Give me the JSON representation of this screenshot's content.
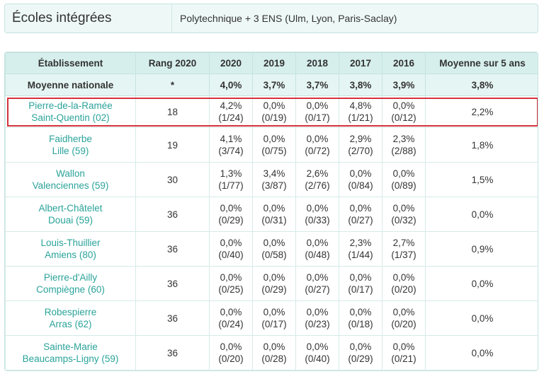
{
  "info": {
    "label": "Écoles intégrées",
    "value": "Polytechnique + 3 ENS (Ulm, Lyon, Paris-Saclay)"
  },
  "table": {
    "headers": [
      "Établissement",
      "Rang 2020",
      "2020",
      "2019",
      "2018",
      "2017",
      "2016",
      "Moyenne sur 5 ans"
    ],
    "national": {
      "name": "Moyenne nationale",
      "rank": "*",
      "years": [
        "4,0%",
        "3,7%",
        "3,7%",
        "3,8%",
        "3,9%"
      ],
      "avg": "3,8%"
    },
    "rows": [
      {
        "name1": "Pierre-de-la-Ramée",
        "name2": "Saint-Quentin (02)",
        "rank": "18",
        "years": [
          [
            "4,2%",
            "(1/24)"
          ],
          [
            "0,0%",
            "(0/19)"
          ],
          [
            "0,0%",
            "(0/17)"
          ],
          [
            "4,8%",
            "(1/21)"
          ],
          [
            "0,0%",
            "(0/12)"
          ]
        ],
        "avg": "2,2%"
      },
      {
        "name1": "Faidherbe",
        "name2": "Lille (59)",
        "rank": "19",
        "years": [
          [
            "4,1%",
            "(3/74)"
          ],
          [
            "0,0%",
            "(0/75)"
          ],
          [
            "0,0%",
            "(0/72)"
          ],
          [
            "2,9%",
            "(2/70)"
          ],
          [
            "2,3%",
            "(2/88)"
          ]
        ],
        "avg": "1,8%"
      },
      {
        "name1": "Wallon",
        "name2": "Valenciennes (59)",
        "rank": "30",
        "years": [
          [
            "1,3%",
            "(1/77)"
          ],
          [
            "3,4%",
            "(3/87)"
          ],
          [
            "2,6%",
            "(2/76)"
          ],
          [
            "0,0%",
            "(0/84)"
          ],
          [
            "0,0%",
            "(0/89)"
          ]
        ],
        "avg": "1,5%"
      },
      {
        "name1": "Albert-Châtelet",
        "name2": "Douai (59)",
        "rank": "36",
        "years": [
          [
            "0,0%",
            "(0/29)"
          ],
          [
            "0,0%",
            "(0/31)"
          ],
          [
            "0,0%",
            "(0/33)"
          ],
          [
            "0,0%",
            "(0/27)"
          ],
          [
            "0,0%",
            "(0/32)"
          ]
        ],
        "avg": "0,0%"
      },
      {
        "name1": "Louis-Thuillier",
        "name2": "Amiens (80)",
        "rank": "36",
        "years": [
          [
            "0,0%",
            "(0/40)"
          ],
          [
            "0,0%",
            "(0/58)"
          ],
          [
            "0,0%",
            "(0/48)"
          ],
          [
            "2,3%",
            "(1/44)"
          ],
          [
            "2,7%",
            "(1/37)"
          ]
        ],
        "avg": "0,9%"
      },
      {
        "name1": "Pierre-d'Ailly",
        "name2": "Compiègne (60)",
        "rank": "36",
        "years": [
          [
            "0,0%",
            "(0/25)"
          ],
          [
            "0,0%",
            "(0/29)"
          ],
          [
            "0,0%",
            "(0/27)"
          ],
          [
            "0,0%",
            "(0/17)"
          ],
          [
            "0,0%",
            "(0/20)"
          ]
        ],
        "avg": "0,0%"
      },
      {
        "name1": "Robespierre",
        "name2": "Arras (62)",
        "rank": "36",
        "years": [
          [
            "0,0%",
            "(0/24)"
          ],
          [
            "0,0%",
            "(0/17)"
          ],
          [
            "0,0%",
            "(0/23)"
          ],
          [
            "0,0%",
            "(0/18)"
          ],
          [
            "0,0%",
            "(0/20)"
          ]
        ],
        "avg": "0,0%"
      },
      {
        "name1": "Sainte-Marie",
        "name2": "Beaucamps-Ligny (59)",
        "rank": "36",
        "years": [
          [
            "0,0%",
            "(0/20)"
          ],
          [
            "0,0%",
            "(0/28)"
          ],
          [
            "0,0%",
            "(0/40)"
          ],
          [
            "0,0%",
            "(0/29)"
          ],
          [
            "0,0%",
            "(0/21)"
          ]
        ],
        "avg": "0,0%"
      }
    ]
  }
}
